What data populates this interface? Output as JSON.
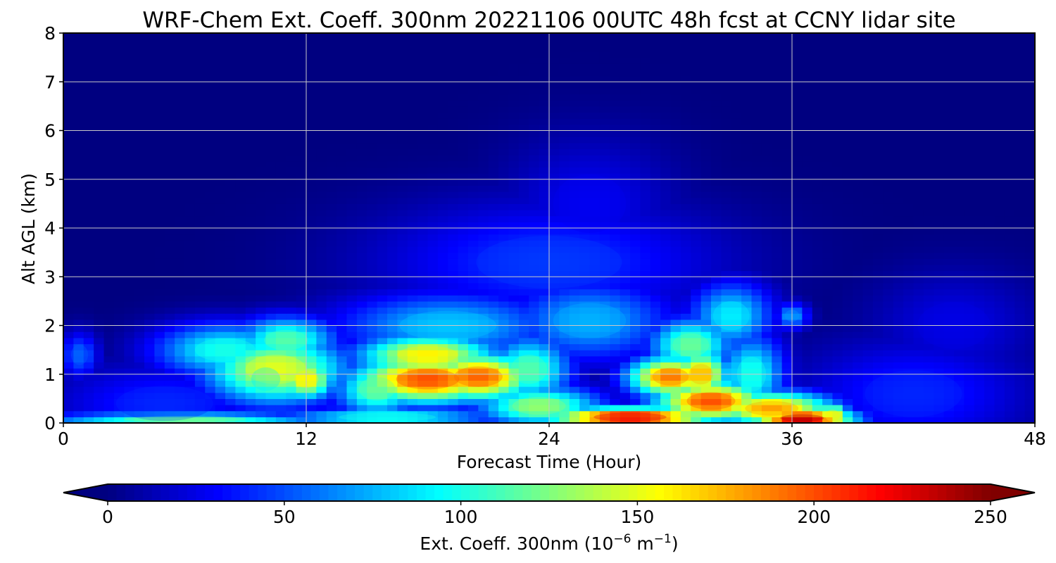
{
  "chart_data": {
    "type": "heatmap",
    "title": "WRF-Chem Ext. Coeff. 300nm  20221106 00UTC 48h fcst at CCNY lidar site",
    "xlabel": "Forecast Time (Hour)",
    "ylabel": "Alt AGL (km)",
    "xlim": [
      0,
      48
    ],
    "ylim": [
      0,
      8
    ],
    "x_ticks": [
      "0",
      "12",
      "24",
      "36",
      "48"
    ],
    "y_ticks": [
      "0",
      "1",
      "2",
      "3",
      "4",
      "5",
      "6",
      "7",
      "8"
    ],
    "grid": true,
    "colormap": "jet",
    "colorbar": {
      "label_main": "Ext. Coeff. 300nm  (10",
      "label_exp1": "−6",
      "label_mid": " m",
      "label_exp2": "−1",
      "label_end": ")",
      "range": [
        0,
        250
      ],
      "ticks": [
        "0",
        "50",
        "100",
        "150",
        "200",
        "250"
      ],
      "extend": "both",
      "orientation": "horizontal"
    },
    "features": [
      {
        "x": 0.8,
        "y": 1.4,
        "value": 55,
        "sx": 0.7,
        "sy": 0.35
      },
      {
        "x": 5,
        "y": 0.4,
        "value": 40,
        "sx": 4,
        "sy": 0.6
      },
      {
        "x": 8,
        "y": 1.5,
        "value": 100,
        "sx": 2.5,
        "sy": 0.4
      },
      {
        "x": 10.5,
        "y": 1.1,
        "value": 150,
        "sx": 2.5,
        "sy": 0.5
      },
      {
        "x": 11,
        "y": 1.7,
        "value": 115,
        "sx": 1.8,
        "sy": 0.35
      },
      {
        "x": 12,
        "y": 0.9,
        "value": 160,
        "sx": 1.0,
        "sy": 0.3
      },
      {
        "x": 6,
        "y": 0.08,
        "value": 120,
        "sx": 5,
        "sy": 0.1
      },
      {
        "x": 18,
        "y": 0.9,
        "value": 200,
        "sx": 2.6,
        "sy": 0.35
      },
      {
        "x": 20.5,
        "y": 0.95,
        "value": 195,
        "sx": 2.0,
        "sy": 0.35
      },
      {
        "x": 18,
        "y": 1.4,
        "value": 160,
        "sx": 2.5,
        "sy": 0.3
      },
      {
        "x": 15.5,
        "y": 0.7,
        "value": 120,
        "sx": 1.5,
        "sy": 0.4
      },
      {
        "x": 19,
        "y": 2.0,
        "value": 80,
        "sx": 4,
        "sy": 0.5
      },
      {
        "x": 16,
        "y": 0.12,
        "value": 100,
        "sx": 4,
        "sy": 0.15
      },
      {
        "x": 23,
        "y": 1.1,
        "value": 115,
        "sx": 1.5,
        "sy": 0.5
      },
      {
        "x": 23.5,
        "y": 0.35,
        "value": 130,
        "sx": 2.2,
        "sy": 0.3
      },
      {
        "x": 26,
        "y": 2.1,
        "value": 75,
        "sx": 3,
        "sy": 0.6
      },
      {
        "x": 28,
        "y": 0.12,
        "value": 225,
        "sx": 3,
        "sy": 0.15
      },
      {
        "x": 30,
        "y": 0.95,
        "value": 190,
        "sx": 1.5,
        "sy": 0.3
      },
      {
        "x": 31.5,
        "y": 1.0,
        "value": 175,
        "sx": 1.0,
        "sy": 0.35
      },
      {
        "x": 32,
        "y": 0.45,
        "value": 200,
        "sx": 2.0,
        "sy": 0.3
      },
      {
        "x": 31,
        "y": 1.6,
        "value": 120,
        "sx": 1.5,
        "sy": 0.4
      },
      {
        "x": 33,
        "y": 2.2,
        "value": 90,
        "sx": 1.5,
        "sy": 0.5
      },
      {
        "x": 34,
        "y": 1.0,
        "value": 100,
        "sx": 1.2,
        "sy": 0.6
      },
      {
        "x": 36.5,
        "y": 0.1,
        "value": 240,
        "sx": 1.8,
        "sy": 0.13
      },
      {
        "x": 35,
        "y": 0.3,
        "value": 180,
        "sx": 2.2,
        "sy": 0.25
      },
      {
        "x": 38,
        "y": 0.15,
        "value": 160,
        "sx": 0.6,
        "sy": 0.2
      },
      {
        "x": 36,
        "y": 2.2,
        "value": 70,
        "sx": 0.6,
        "sy": 0.2
      },
      {
        "x": 42,
        "y": 0.6,
        "value": 40,
        "sx": 4,
        "sy": 0.8
      },
      {
        "x": 24,
        "y": 3.3,
        "value": 45,
        "sx": 6,
        "sy": 0.9
      },
      {
        "x": 26,
        "y": 4.5,
        "value": 28,
        "sx": 3,
        "sy": 1.0
      },
      {
        "x": 44,
        "y": 2.0,
        "value": 25,
        "sx": 3,
        "sy": 0.8
      },
      {
        "x": 10,
        "y": 0.9,
        "value": 90,
        "sx": 1.2,
        "sy": 0.4
      }
    ]
  }
}
